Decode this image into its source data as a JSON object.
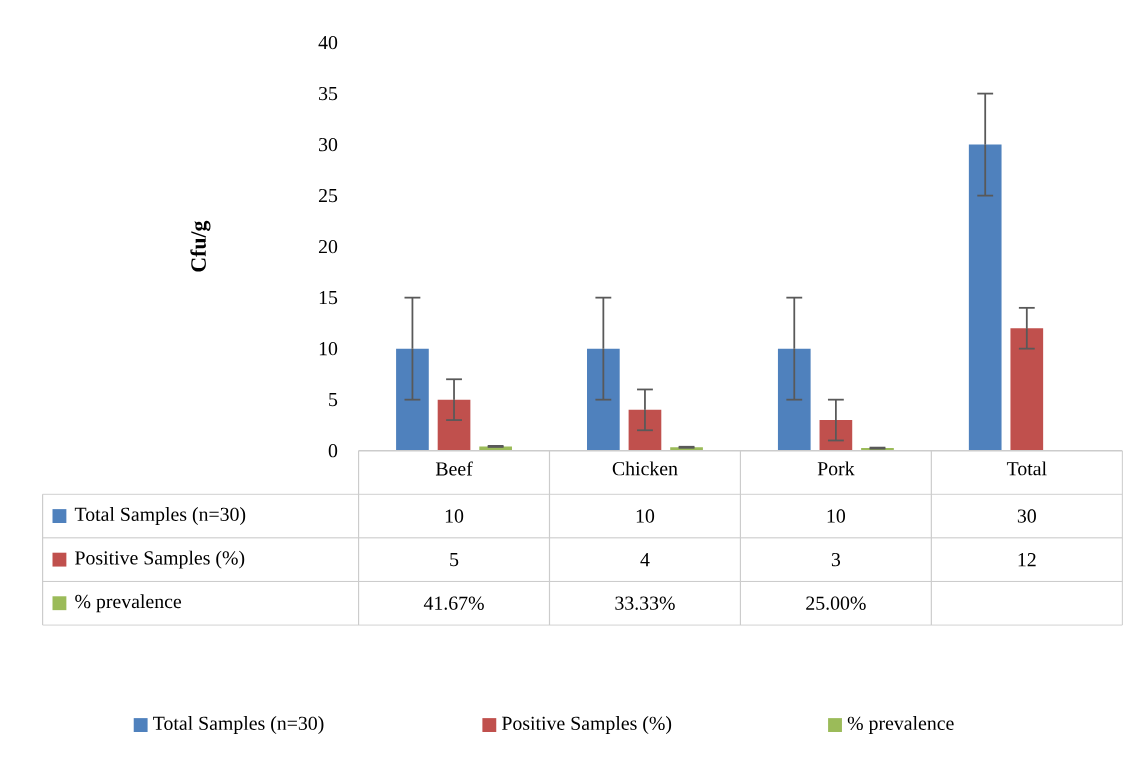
{
  "chart_data": {
    "type": "bar",
    "ylabel": "Cfu/g",
    "categories": [
      "Beef",
      "Chicken",
      "Pork",
      "Total"
    ],
    "series": [
      {
        "name": "Total Samples (n=30)",
        "color": "#4f81bd",
        "values": [
          10,
          10,
          10,
          30
        ],
        "errors": [
          5,
          5,
          5,
          5
        ],
        "value_labels": [
          "10",
          "10",
          "10",
          "30"
        ]
      },
      {
        "name": "Positive Samples (%)",
        "color": "#c0504d",
        "values": [
          5,
          4,
          3,
          12
        ],
        "errors": [
          2,
          2,
          2,
          2
        ],
        "value_labels": [
          "5",
          "4",
          "3",
          "12"
        ]
      },
      {
        "name": "% prevalence",
        "color": "#9bbb59",
        "values": [
          0.4167,
          0.3333,
          0.25,
          null
        ],
        "errors": [
          0.05,
          0.05,
          0.05,
          null
        ],
        "value_labels": [
          "41.67%",
          "33.33%",
          "25.00%",
          null
        ]
      }
    ],
    "ylim": [
      0,
      40
    ],
    "yticks": [
      0,
      5,
      10,
      15,
      20,
      25,
      30,
      35,
      40
    ],
    "grid": false,
    "legend": "bottom"
  }
}
